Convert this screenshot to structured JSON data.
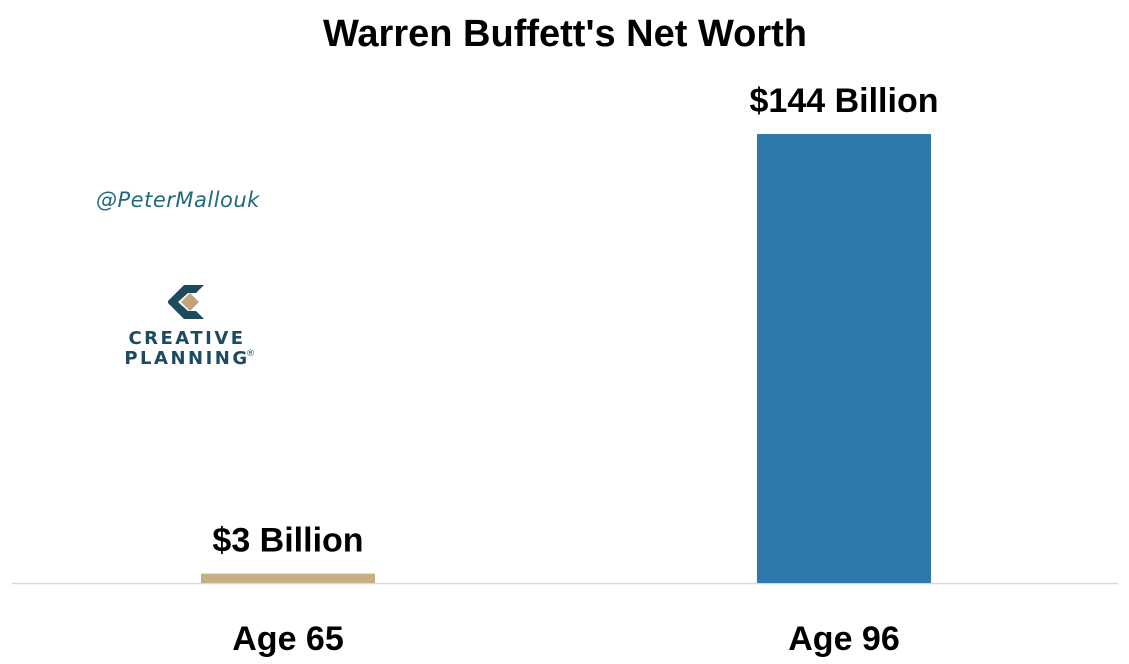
{
  "chart_data": {
    "type": "bar",
    "title": "Warren Buffett's Net Worth",
    "xlabel": "",
    "ylabel": "",
    "categories": [
      "Age 65",
      "Age 96"
    ],
    "values": [
      3,
      144
    ],
    "value_labels": [
      "$3 Billion",
      "$144 Billion"
    ],
    "unit": "Billion USD",
    "colors": [
      "#c7ae84",
      "#2e7aad"
    ],
    "ylim": [
      0,
      144
    ],
    "grid": false,
    "legend": "none"
  },
  "watermark": {
    "handle": "@PeterMallouk",
    "brand_line1": "CREATIVE",
    "brand_line2": "PLANNING",
    "brand_mark": "®",
    "brand_color": "#1c4b5f",
    "brand_accent": "#c2a47a"
  }
}
